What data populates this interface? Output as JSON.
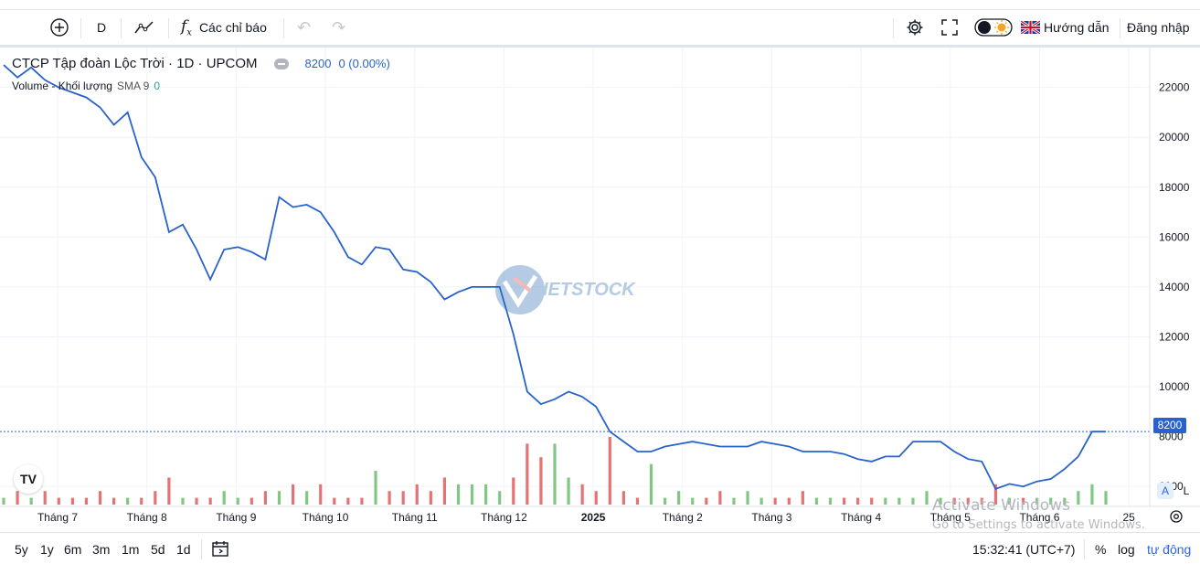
{
  "toolbar": {
    "interval": "D",
    "indicators_label": "Các chỉ báo",
    "guide_label": "Hướng dẫn",
    "login_label": "Đăng nhập"
  },
  "legend": {
    "symbol_title": "CTCP Tập đoàn Lộc Trời · 1D · UPCOM",
    "price": "8200",
    "change": "0 (0.00%)",
    "volume_label": "Volume - Khối lượng",
    "sma_label": "SMA 9",
    "sma_value": "0"
  },
  "watermark": "IETSTOCK",
  "price_badge": "8200",
  "scale_buttons": {
    "auto": "A",
    "log": "L"
  },
  "bottom": {
    "ranges": [
      "5y",
      "1y",
      "6m",
      "3m",
      "1m",
      "5d",
      "1d"
    ],
    "time": "15:32:41 (UTC+7)",
    "percent": "%",
    "log": "log",
    "auto": "tự động"
  },
  "activate": {
    "title": "Activate Windows",
    "subtitle": "Go to Settings to activate Windows."
  },
  "colors": {
    "line": "#2962cc",
    "up_volume": "#81c784",
    "down_volume": "#e57373",
    "accent": "#2962ff"
  },
  "chart_data": {
    "type": "line",
    "series": [
      {
        "name": "CTCP Tập đoàn Lộc Trời",
        "x": [
          "Jul",
          "Jul",
          "Jul",
          "Jul",
          "Jul",
          "Jul",
          "Jul",
          "Jul",
          "Jul",
          "Jul",
          "Aug",
          "Aug",
          "Aug",
          "Aug",
          "Aug",
          "Aug",
          "Aug",
          "Aug",
          "Aug",
          "Aug",
          "Aug",
          "Aug",
          "Aug",
          "Aug",
          "Sep",
          "Sep",
          "Sep",
          "Sep",
          "Sep",
          "Sep",
          "Sep",
          "Sep",
          "Sep",
          "Sep",
          "Sep",
          "Sep",
          "Sep",
          "Sep",
          "Oct",
          "Oct",
          "Oct",
          "Oct",
          "Oct",
          "Oct",
          "Oct",
          "Oct",
          "Oct",
          "Oct",
          "Oct",
          "Oct",
          "Oct",
          "Oct",
          "Nov",
          "Nov",
          "Nov",
          "Nov",
          "Nov",
          "Dec",
          "Dec",
          "Dec",
          "Jan",
          "Jan",
          "Jan",
          "Feb",
          "Feb",
          "Feb",
          "Mar",
          "Mar",
          "Mar",
          "Mar",
          "Apr",
          "Apr",
          "Apr",
          "Apr",
          "May",
          "May",
          "May",
          "Jun",
          "Jun",
          "Jun",
          "Jun"
        ],
        "values": [
          22900,
          22400,
          22800,
          22300,
          22000,
          21800,
          21600,
          21200,
          20500,
          21000,
          19200,
          18400,
          16200,
          16500,
          15500,
          14300,
          15500,
          15600,
          15400,
          15100,
          17600,
          17200,
          17300,
          17000,
          16200,
          15200,
          14900,
          15600,
          15500,
          14700,
          14600,
          14200,
          13500,
          13800,
          14000,
          14000,
          14000,
          12100,
          9800,
          9300,
          9500,
          9800,
          9600,
          9200,
          8200,
          7800,
          7400,
          7400,
          7600,
          7700,
          7800,
          7700,
          7600,
          7600,
          7600,
          7800,
          7700,
          7600,
          7400,
          7400,
          7400,
          7300,
          7100,
          7000,
          7200,
          7200,
          7800,
          7800,
          7800,
          7400,
          7100,
          7000,
          5900,
          6100,
          6000,
          6200,
          6300,
          6700,
          7200,
          8200,
          8200
        ]
      },
      {
        "name": "Volume - Khối lượng",
        "values": [
          1,
          2,
          1,
          2,
          1,
          1,
          1,
          2,
          1,
          1,
          1,
          2,
          4,
          1,
          1,
          1,
          2,
          1,
          1,
          2,
          2,
          3,
          2,
          3,
          1,
          1,
          1,
          5,
          2,
          2,
          3,
          2,
          4,
          3,
          3,
          3,
          2,
          4,
          9,
          7,
          9,
          4,
          3,
          2,
          10,
          2,
          1,
          6,
          1,
          2,
          1,
          1,
          2,
          1,
          2,
          1,
          1,
          1,
          2,
          1,
          1,
          1,
          1,
          1,
          1,
          1,
          1,
          2,
          1,
          1,
          1,
          1,
          3,
          1,
          1,
          1,
          1,
          1,
          2,
          3,
          2
        ]
      }
    ],
    "x_ticks": [
      "Tháng 7",
      "Tháng 8",
      "Tháng 9",
      "Tháng 10",
      "Tháng 11",
      "Tháng 12",
      "2025",
      "Tháng 2",
      "Tháng 3",
      "Tháng 4",
      "Tháng 5",
      "Tháng 6",
      "25"
    ],
    "y_ticks": [
      "6000",
      "8000",
      "10000",
      "12000",
      "14000",
      "16000",
      "18000",
      "20000",
      "22000"
    ],
    "ylim": [
      5200,
      23600
    ],
    "last_price_line": 8200,
    "grid": true
  }
}
